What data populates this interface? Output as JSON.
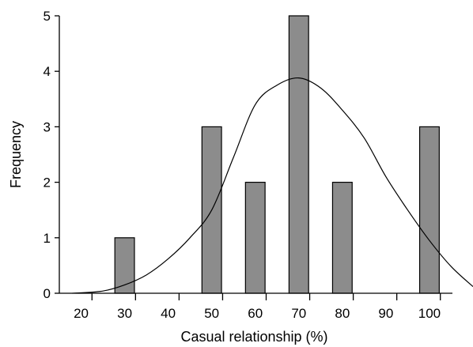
{
  "chart_data": {
    "type": "bar",
    "title": "",
    "xlabel": "Casual relationship (%)",
    "ylabel": "Frequency",
    "ylim": [
      0,
      5
    ],
    "yticks": [
      "0",
      "1",
      "2",
      "3",
      "4",
      "5"
    ],
    "xlim": [
      15,
      110
    ],
    "xticks": [
      "20",
      "30",
      "40",
      "50",
      "60",
      "70",
      "80",
      "90",
      "100"
    ],
    "bar_width": 4.5,
    "grid": false,
    "colors": {
      "bar_fill": "#8c8c8c",
      "bar_stroke": "#000000",
      "curve": "#000000"
    },
    "series": [
      {
        "type": "bar",
        "x": [
          30,
          50,
          60,
          70,
          80,
          100
        ],
        "values": [
          1,
          3,
          2,
          5,
          2,
          3
        ]
      },
      {
        "type": "line",
        "description": "fitted normal curve",
        "x": [
          18,
          25,
          30,
          35,
          40,
          45,
          50,
          55,
          60,
          65,
          70,
          75,
          80,
          85,
          90,
          95,
          100,
          105,
          110
        ],
        "values": [
          0.0,
          0.04,
          0.15,
          0.33,
          0.62,
          1.0,
          1.5,
          2.45,
          3.4,
          3.75,
          3.88,
          3.7,
          3.3,
          2.8,
          2.1,
          1.5,
          0.95,
          0.48,
          0.12
        ]
      }
    ]
  }
}
